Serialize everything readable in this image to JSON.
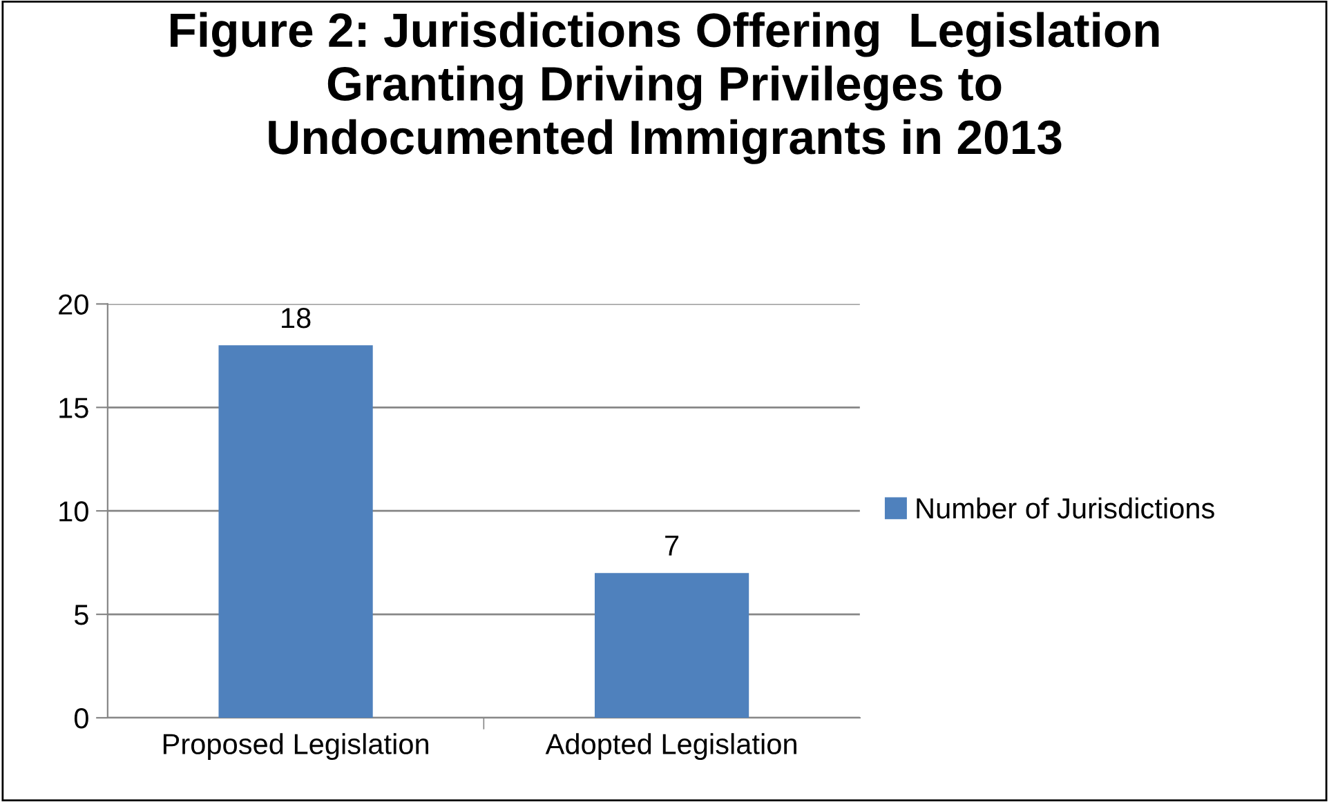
{
  "chart_data": {
    "type": "bar",
    "title": "Figure 2: Jurisdictions Offering  Legislation\nGranting Driving Privileges to\nUndocumented Immigrants in 2013",
    "categories": [
      "Proposed Legislation",
      "Adopted Legislation"
    ],
    "series": [
      {
        "name": "Number of Jurisdictions",
        "color": "#4f81bd",
        "values": [
          18,
          7
        ]
      }
    ],
    "ylim": [
      0,
      20
    ],
    "yticks": [
      0,
      5,
      10,
      15,
      20
    ],
    "grid": "y",
    "legend": "right",
    "data_labels": true
  }
}
